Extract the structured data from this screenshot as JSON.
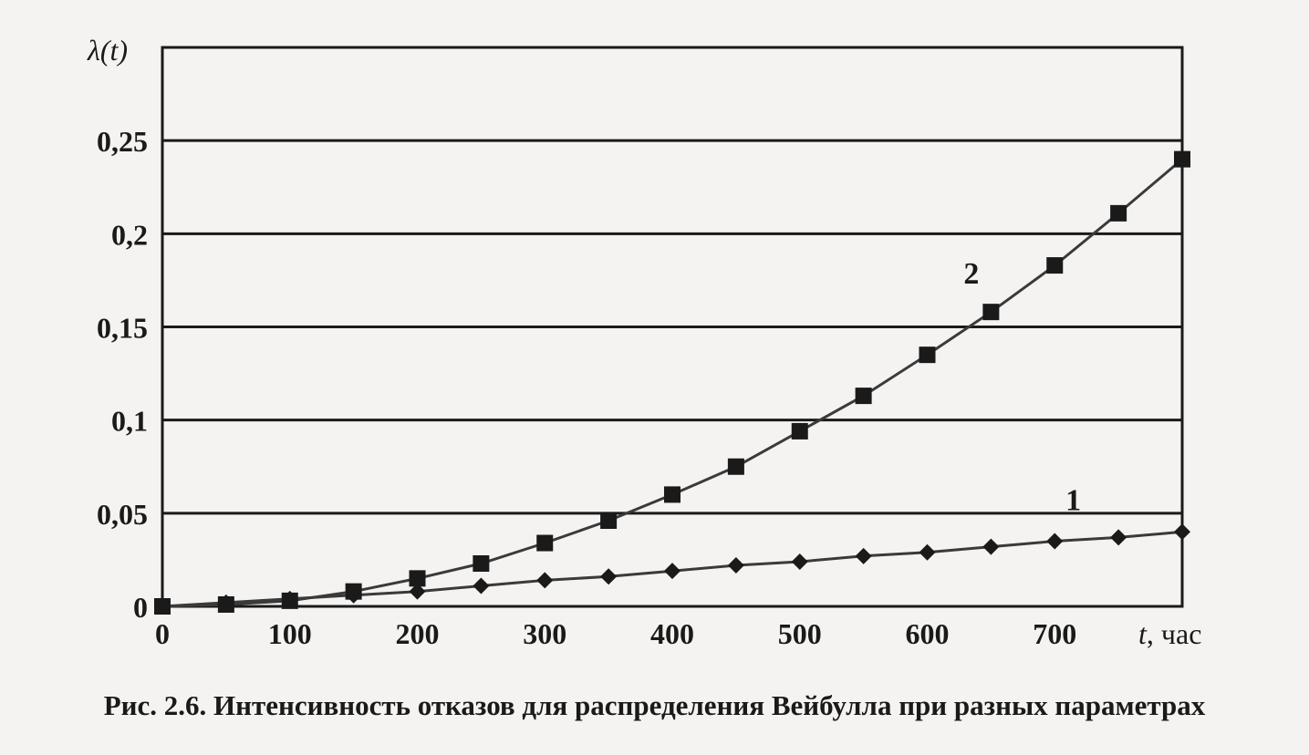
{
  "caption": {
    "number": "Рис. 2.6.",
    "text": " Интенсивность отказов для распределения Вейбулла при разных параметрах"
  },
  "chart_data": {
    "type": "line",
    "ylabel": "λ(t)",
    "xlabel_var": "t",
    "xlabel_unit": ", час",
    "xlim": [
      0,
      800
    ],
    "ylim": [
      0,
      0.3
    ],
    "x_ticks": [
      0,
      100,
      200,
      300,
      400,
      500,
      600,
      700
    ],
    "x_tick_labels": [
      "0",
      "100",
      "200",
      "300",
      "400",
      "500",
      "600",
      "700"
    ],
    "y_ticks": [
      0,
      0.05,
      0.1,
      0.15,
      0.2,
      0.25
    ],
    "y_tick_labels": [
      "0",
      "0,05",
      "0,1",
      "0,15",
      "0,2",
      "0,25"
    ],
    "grid": "horizontal",
    "x": [
      0,
      50,
      100,
      150,
      200,
      250,
      300,
      350,
      400,
      450,
      500,
      550,
      600,
      650,
      700,
      750,
      800
    ],
    "series": [
      {
        "label": "1",
        "marker": "diamond",
        "values": [
          0.0,
          0.002,
          0.004,
          0.006,
          0.008,
          0.011,
          0.014,
          0.016,
          0.019,
          0.022,
          0.024,
          0.027,
          0.029,
          0.032,
          0.035,
          0.037,
          0.04
        ]
      },
      {
        "label": "2",
        "marker": "square",
        "values": [
          0.0,
          0.001,
          0.003,
          0.008,
          0.015,
          0.023,
          0.034,
          0.046,
          0.06,
          0.075,
          0.094,
          0.113,
          0.135,
          0.158,
          0.183,
          0.211,
          0.24
        ]
      }
    ],
    "colors": {
      "line": "#3a3a3a",
      "marker": "#1a1a1a",
      "grid": "#1a1a1a"
    }
  }
}
